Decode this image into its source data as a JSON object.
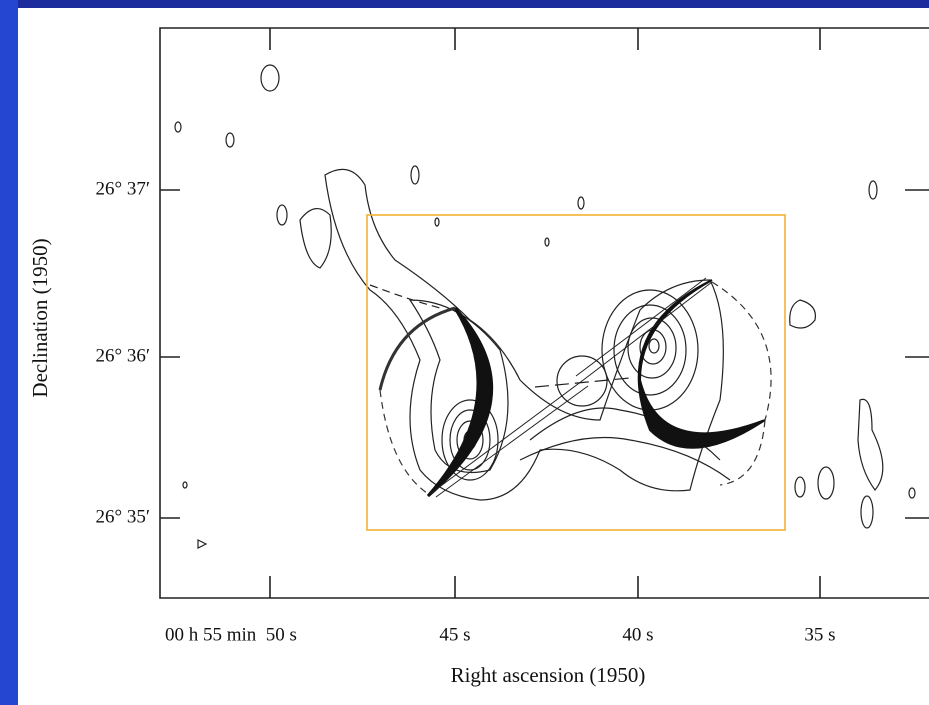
{
  "figure": {
    "y_axis": {
      "label": "Declination (1950)",
      "tick_labels": [
        "26° 37′",
        "26° 36′",
        "26° 35′"
      ]
    },
    "x_axis": {
      "label": "Right ascension (1950)",
      "tick_labels": [
        "00 h 55 min  50 s",
        "45 s",
        "40 s",
        "35 s"
      ]
    }
  }
}
